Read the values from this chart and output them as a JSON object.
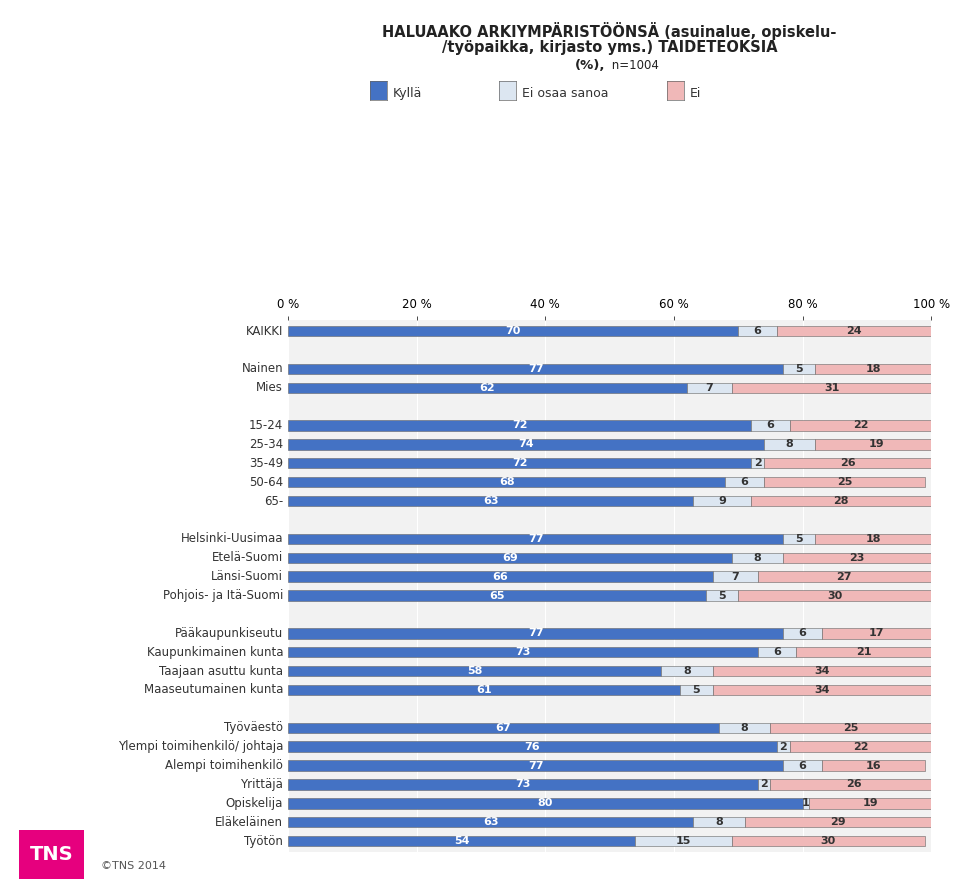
{
  "title_line1": "HALUAAKO ARKIYMPÄRISTÖÖNSÄ (asuinalue, opiskelu-",
  "title_line2": "/työpaikka, kirjasto yms.) TAIDETEOKSIA",
  "title_line3": "(%),",
  "title_line3b": " n=1004",
  "categories": [
    "KAIKKI",
    "",
    "Nainen",
    "Mies",
    "",
    "15-24",
    "25-34",
    "35-49",
    "50-64",
    "65-",
    "",
    "Helsinki-Uusimaa",
    "Etelä-Suomi",
    "Länsi-Suomi",
    "Pohjois- ja Itä-Suomi",
    "",
    "Pääkaupunkiseutu",
    "Kaupunkimainen kunta",
    "Taajaan asuttu kunta",
    "Maaseutumainen kunta",
    "",
    "Työväestö",
    "Ylempi toimihenkilö/ johtaja",
    "Alempi toimihenkilö",
    "Yrittäjä",
    "Opiskelija",
    "Eläkeläinen",
    "Työtön"
  ],
  "kylla": [
    70,
    0,
    77,
    62,
    0,
    72,
    74,
    72,
    68,
    63,
    0,
    77,
    69,
    66,
    65,
    0,
    77,
    73,
    58,
    61,
    0,
    67,
    76,
    77,
    73,
    80,
    63,
    54
  ],
  "eos": [
    6,
    0,
    5,
    7,
    0,
    6,
    8,
    2,
    6,
    9,
    0,
    5,
    8,
    7,
    5,
    0,
    6,
    6,
    8,
    5,
    0,
    8,
    2,
    6,
    2,
    1,
    8,
    15
  ],
  "ei": [
    24,
    0,
    18,
    31,
    0,
    22,
    19,
    26,
    25,
    28,
    0,
    18,
    23,
    27,
    30,
    0,
    17,
    21,
    34,
    34,
    0,
    25,
    22,
    16,
    26,
    19,
    29,
    30
  ],
  "color_kylla": "#4472c4",
  "color_eos": "#dce6f1",
  "color_ei": "#f0b8b8",
  "background_color": "#f2f2f2",
  "legend_kylla": "Kyllä",
  "legend_eos": "Ei osaa sanoa",
  "legend_ei": "Ei"
}
